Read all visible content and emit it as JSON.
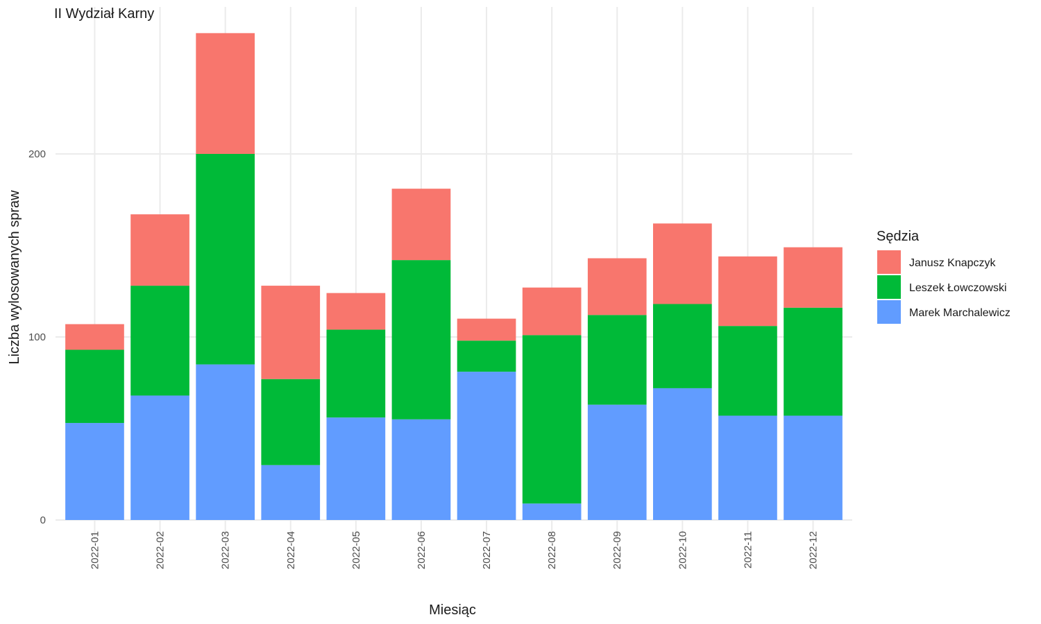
{
  "chart_data": {
    "type": "bar",
    "stacked": true,
    "title": "II Wydział Karny",
    "xlabel": "Miesiąc",
    "ylabel": "Liczba wylosowanych spraw",
    "ylim": [
      0,
      265
    ],
    "yticks": [
      0,
      100,
      200
    ],
    "grid": true,
    "legend_title": "Sędzia",
    "legend_position": "right",
    "categories": [
      "2022-01",
      "2022-02",
      "2022-03",
      "2022-04",
      "2022-05",
      "2022-06",
      "2022-07",
      "2022-08",
      "2022-09",
      "2022-10",
      "2022-11",
      "2022-12"
    ],
    "series": [
      {
        "name": "Marek Marchalewicz",
        "color": "#619cff",
        "values": [
          53,
          68,
          85,
          30,
          56,
          55,
          81,
          9,
          63,
          72,
          57,
          57
        ]
      },
      {
        "name": "Leszek Łowczowski",
        "color": "#00ba38",
        "values": [
          40,
          60,
          115,
          47,
          48,
          87,
          17,
          92,
          49,
          46,
          49,
          59
        ]
      },
      {
        "name": "Janusz Knapczyk",
        "color": "#f8766d",
        "values": [
          14,
          39,
          66,
          51,
          20,
          39,
          12,
          26,
          31,
          44,
          38,
          33
        ]
      }
    ],
    "legend_order": [
      "Janusz Knapczyk",
      "Leszek Łowczowski",
      "Marek Marchalewicz"
    ]
  }
}
